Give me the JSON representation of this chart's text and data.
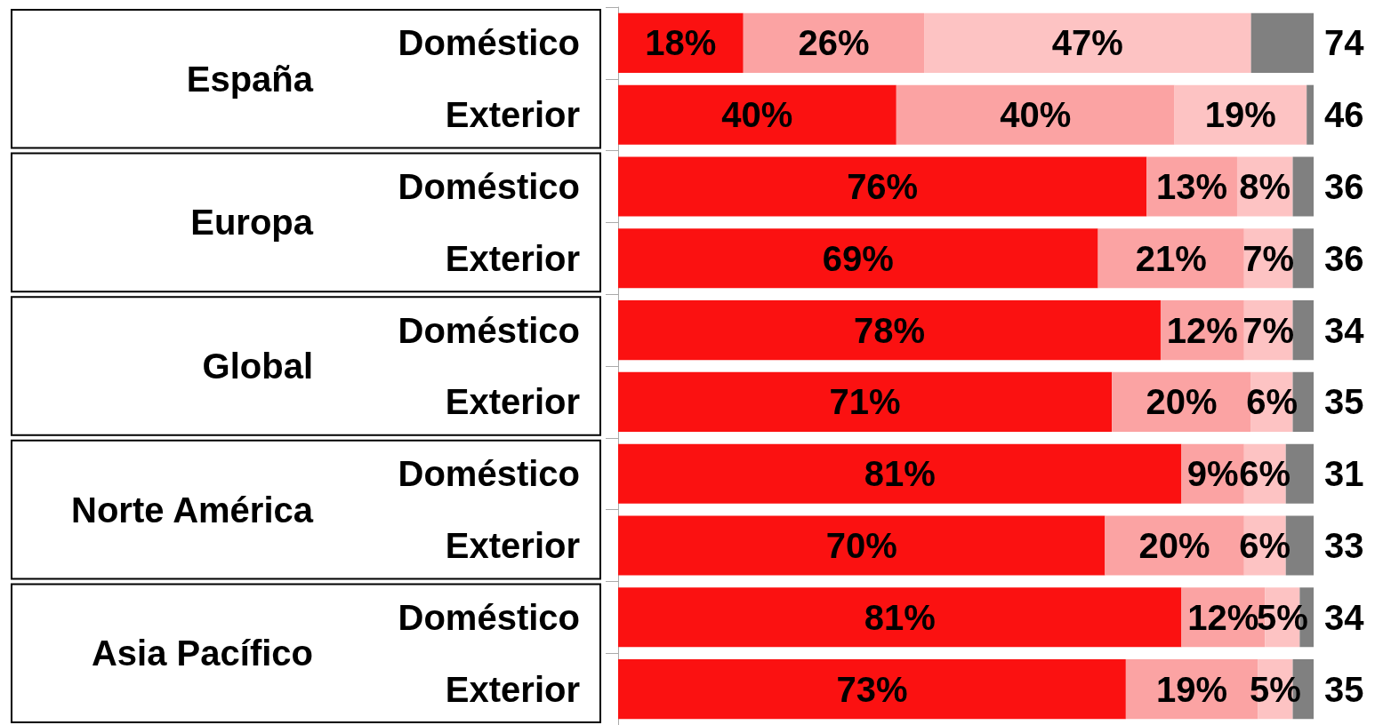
{
  "chart_data": {
    "type": "bar",
    "orientation": "horizontal",
    "stacked": true,
    "tick_labels": "y",
    "categories": [
      "Doméstico",
      "Exterior",
      "Doméstico",
      "Exterior",
      "Doméstico",
      "Exterior",
      "Doméstico",
      "Exterior",
      "Doméstico",
      "Exterior"
    ],
    "annotations": [
      "España",
      "Europa",
      "Global",
      "Norte América",
      "Asia Pacífico"
    ],
    "xlim": [
      0,
      100
    ],
    "series": [
      {
        "color": "#fb1111",
        "values": [
          18,
          40,
          76,
          69,
          78,
          71,
          81,
          70,
          81,
          73
        ],
        "value_labels": [
          "18%",
          "40%",
          "76%",
          "69%",
          "78%",
          "71%",
          "81%",
          "70%",
          "81%",
          "73%"
        ]
      },
      {
        "color": "#fba3a3",
        "values": [
          26,
          40,
          13,
          21,
          12,
          20,
          9,
          20,
          12,
          19
        ],
        "value_labels": [
          "26%",
          "40%",
          "13%",
          "21%",
          "12%",
          "20%",
          "9%",
          "20%",
          "12%",
          "19%"
        ]
      },
      {
        "color": "#fdc3c3",
        "values": [
          47,
          19,
          8,
          7,
          7,
          6,
          6,
          6,
          5,
          5
        ],
        "value_labels": [
          "47%",
          "19%",
          "8%",
          "7%",
          "7%",
          "6%",
          "6%",
          "6%",
          "5%",
          "5%"
        ]
      },
      {
        "color": "#808080",
        "values": [
          9,
          1,
          3,
          3,
          3,
          3,
          4,
          4,
          2,
          3
        ],
        "value_labels": [
          null,
          null,
          null,
          null,
          null,
          null,
          null,
          null,
          null,
          null
        ]
      }
    ],
    "y2_categories": [
      "74",
      "46",
      "36",
      "36",
      "34",
      "35",
      "31",
      "33",
      "34",
      "35"
    ]
  }
}
